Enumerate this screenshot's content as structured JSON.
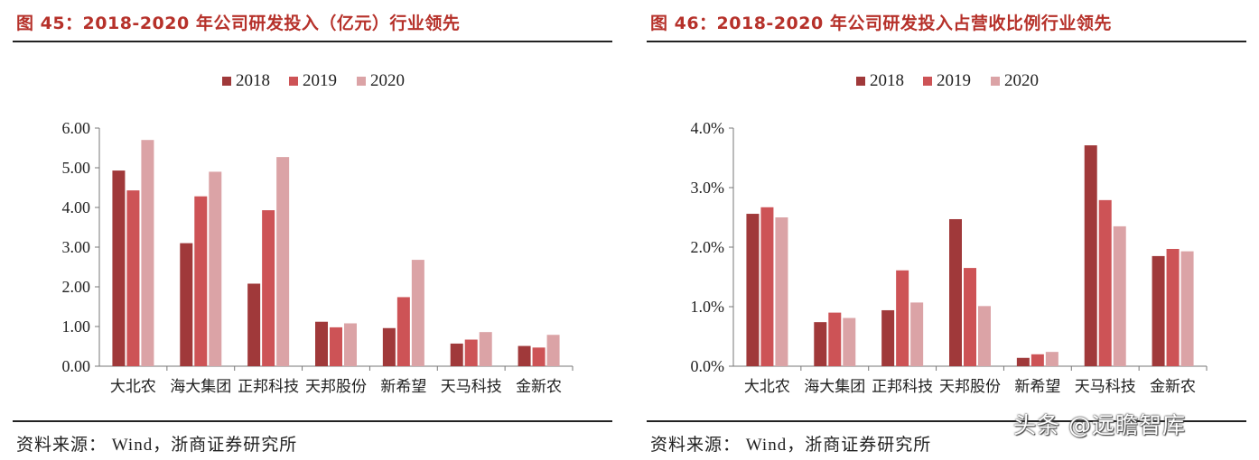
{
  "figures": [
    {
      "title": "图 45：2018-2020 年公司研发投入（亿元）行业领先",
      "source": "资料来源： Wind，浙商证券研究所"
    },
    {
      "title": "图 46：2018-2020 年公司研发投入占营收比例行业领先",
      "source": "资料来源： Wind，浙商证券研究所"
    }
  ],
  "watermark": "头条 @远瞻智库",
  "colors": {
    "2018": "#a0393a",
    "2019": "#cd5356",
    "2020": "#dba3a6",
    "title": "#b6312a"
  },
  "chart_data": [
    {
      "type": "bar",
      "categories": [
        "大北农",
        "海大集团",
        "正邦科技",
        "天邦股份",
        "新希望",
        "天马科技",
        "金新农"
      ],
      "series": [
        {
          "name": "2018",
          "values": [
            4.93,
            3.1,
            2.08,
            1.12,
            0.96,
            0.57,
            0.51
          ]
        },
        {
          "name": "2019",
          "values": [
            4.43,
            4.28,
            3.93,
            0.98,
            1.74,
            0.67,
            0.47
          ]
        },
        {
          "name": "2020",
          "values": [
            5.7,
            4.9,
            5.27,
            1.08,
            2.68,
            0.86,
            0.79
          ]
        }
      ],
      "ylim": [
        0,
        6
      ],
      "yticks": [
        "0.00",
        "1.00",
        "2.00",
        "3.00",
        "4.00",
        "5.00",
        "6.00"
      ],
      "legend": "top-center",
      "grid": false
    },
    {
      "type": "bar",
      "categories": [
        "大北农",
        "海大集团",
        "正邦科技",
        "天邦股份",
        "新希望",
        "天马科技",
        "金新农"
      ],
      "series": [
        {
          "name": "2018",
          "values": [
            2.56,
            0.74,
            0.94,
            2.47,
            0.14,
            3.71,
            1.85
          ]
        },
        {
          "name": "2019",
          "values": [
            2.67,
            0.9,
            1.61,
            1.65,
            0.2,
            2.79,
            1.97
          ]
        },
        {
          "name": "2020",
          "values": [
            2.5,
            0.81,
            1.07,
            1.01,
            0.24,
            2.35,
            1.93
          ]
        }
      ],
      "ylim": [
        0,
        4
      ],
      "yticks": [
        "0.0%",
        "1.0%",
        "2.0%",
        "3.0%",
        "4.0%"
      ],
      "legend": "top-center",
      "grid": false
    }
  ]
}
